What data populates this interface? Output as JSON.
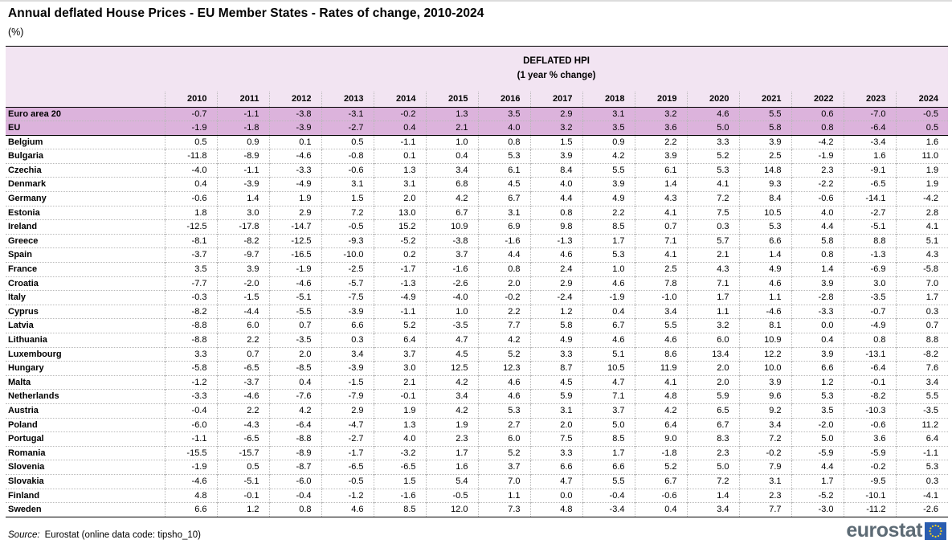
{
  "page": {
    "title": "Annual deflated House Prices - EU Member States - Rates of change, 2010-2024",
    "unit": "(%)"
  },
  "table_header": {
    "line1": "DEFLATED HPI",
    "line2": "(1 year % change)"
  },
  "chart_data": {
    "type": "table",
    "title": "DEFLATED HPI (1 year % change)",
    "unit": "%",
    "columns": [
      "2010",
      "2011",
      "2012",
      "2013",
      "2014",
      "2015",
      "2016",
      "2017",
      "2018",
      "2019",
      "2020",
      "2021",
      "2022",
      "2023",
      "2024"
    ],
    "rows": [
      {
        "name": "Euro area 20",
        "highlight": true,
        "values": [
          "-0.7",
          "-1.1",
          "-3.8",
          "-3.1",
          "-0.2",
          "1.3",
          "3.5",
          "2.9",
          "3.1",
          "3.2",
          "4.6",
          "5.5",
          "0.6",
          "-7.0",
          "-0.5"
        ]
      },
      {
        "name": "EU",
        "highlight": true,
        "values": [
          "-1.9",
          "-1.8",
          "-3.9",
          "-2.7",
          "0.4",
          "2.1",
          "4.0",
          "3.2",
          "3.5",
          "3.6",
          "5.0",
          "5.8",
          "0.8",
          "-6.4",
          "0.5"
        ]
      },
      {
        "name": "Belgium",
        "highlight": false,
        "values": [
          "0.5",
          "0.9",
          "0.1",
          "0.5",
          "-1.1",
          "1.0",
          "0.8",
          "1.5",
          "0.9",
          "2.2",
          "3.3",
          "3.9",
          "-4.2",
          "-3.4",
          "1.6"
        ]
      },
      {
        "name": "Bulgaria",
        "highlight": false,
        "values": [
          "-11.8",
          "-8.9",
          "-4.6",
          "-0.8",
          "0.1",
          "0.4",
          "5.3",
          "3.9",
          "4.2",
          "3.9",
          "5.2",
          "2.5",
          "-1.9",
          "1.6",
          "11.0"
        ]
      },
      {
        "name": "Czechia",
        "highlight": false,
        "values": [
          "-4.0",
          "-1.1",
          "-3.3",
          "-0.6",
          "1.3",
          "3.4",
          "6.1",
          "8.4",
          "5.5",
          "6.1",
          "5.3",
          "14.8",
          "2.3",
          "-9.1",
          "1.9"
        ]
      },
      {
        "name": "Denmark",
        "highlight": false,
        "values": [
          "0.4",
          "-3.9",
          "-4.9",
          "3.1",
          "3.1",
          "6.8",
          "4.5",
          "4.0",
          "3.9",
          "1.4",
          "4.1",
          "9.3",
          "-2.2",
          "-6.5",
          "1.9"
        ]
      },
      {
        "name": "Germany",
        "highlight": false,
        "values": [
          "-0.6",
          "1.4",
          "1.9",
          "1.5",
          "2.0",
          "4.2",
          "6.7",
          "4.4",
          "4.9",
          "4.3",
          "7.2",
          "8.4",
          "-0.6",
          "-14.1",
          "-4.2"
        ]
      },
      {
        "name": "Estonia",
        "highlight": false,
        "values": [
          "1.8",
          "3.0",
          "2.9",
          "7.2",
          "13.0",
          "6.7",
          "3.1",
          "0.8",
          "2.2",
          "4.1",
          "7.5",
          "10.5",
          "4.0",
          "-2.7",
          "2.8"
        ]
      },
      {
        "name": "Ireland",
        "highlight": false,
        "values": [
          "-12.5",
          "-17.8",
          "-14.7",
          "-0.5",
          "15.2",
          "10.9",
          "6.9",
          "9.8",
          "8.5",
          "0.7",
          "0.3",
          "5.3",
          "4.4",
          "-5.1",
          "4.1"
        ]
      },
      {
        "name": "Greece",
        "highlight": false,
        "values": [
          "-8.1",
          "-8.2",
          "-12.5",
          "-9.3",
          "-5.2",
          "-3.8",
          "-1.6",
          "-1.3",
          "1.7",
          "7.1",
          "5.7",
          "6.6",
          "5.8",
          "8.8",
          "5.1"
        ]
      },
      {
        "name": "Spain",
        "highlight": false,
        "values": [
          "-3.7",
          "-9.7",
          "-16.5",
          "-10.0",
          "0.2",
          "3.7",
          "4.4",
          "4.6",
          "5.3",
          "4.1",
          "2.1",
          "1.4",
          "0.8",
          "-1.3",
          "4.3"
        ]
      },
      {
        "name": "France",
        "highlight": false,
        "values": [
          "3.5",
          "3.9",
          "-1.9",
          "-2.5",
          "-1.7",
          "-1.6",
          "0.8",
          "2.4",
          "1.0",
          "2.5",
          "4.3",
          "4.9",
          "1.4",
          "-6.9",
          "-5.8"
        ]
      },
      {
        "name": "Croatia",
        "highlight": false,
        "values": [
          "-7.7",
          "-2.0",
          "-4.6",
          "-5.7",
          "-1.3",
          "-2.6",
          "2.0",
          "2.9",
          "4.6",
          "7.8",
          "7.1",
          "4.6",
          "3.9",
          "3.0",
          "7.0"
        ]
      },
      {
        "name": "Italy",
        "highlight": false,
        "values": [
          "-0.3",
          "-1.5",
          "-5.1",
          "-7.5",
          "-4.9",
          "-4.0",
          "-0.2",
          "-2.4",
          "-1.9",
          "-1.0",
          "1.7",
          "1.1",
          "-2.8",
          "-3.5",
          "1.7"
        ]
      },
      {
        "name": "Cyprus",
        "highlight": false,
        "values": [
          "-8.2",
          "-4.4",
          "-5.5",
          "-3.9",
          "-1.1",
          "1.0",
          "2.2",
          "1.2",
          "0.4",
          "3.4",
          "1.1",
          "-4.6",
          "-3.3",
          "-0.7",
          "0.3"
        ]
      },
      {
        "name": "Latvia",
        "highlight": false,
        "values": [
          "-8.8",
          "6.0",
          "0.7",
          "6.6",
          "5.2",
          "-3.5",
          "7.7",
          "5.8",
          "6.7",
          "5.5",
          "3.2",
          "8.1",
          "0.0",
          "-4.9",
          "0.7"
        ]
      },
      {
        "name": "Lithuania",
        "highlight": false,
        "values": [
          "-8.8",
          "2.2",
          "-3.5",
          "0.3",
          "6.4",
          "4.7",
          "4.2",
          "4.9",
          "4.6",
          "4.6",
          "6.0",
          "10.9",
          "0.4",
          "0.8",
          "8.8"
        ]
      },
      {
        "name": "Luxembourg",
        "highlight": false,
        "values": [
          "3.3",
          "0.7",
          "2.0",
          "3.4",
          "3.7",
          "4.5",
          "5.2",
          "3.3",
          "5.1",
          "8.6",
          "13.4",
          "12.2",
          "3.9",
          "-13.1",
          "-8.2"
        ]
      },
      {
        "name": "Hungary",
        "highlight": false,
        "values": [
          "-5.8",
          "-6.5",
          "-8.5",
          "-3.9",
          "3.0",
          "12.5",
          "12.3",
          "8.7",
          "10.5",
          "11.9",
          "2.0",
          "10.0",
          "6.6",
          "-6.4",
          "7.6"
        ]
      },
      {
        "name": "Malta",
        "highlight": false,
        "values": [
          "-1.2",
          "-3.7",
          "0.4",
          "-1.5",
          "2.1",
          "4.2",
          "4.6",
          "4.5",
          "4.7",
          "4.1",
          "2.0",
          "3.9",
          "1.2",
          "-0.1",
          "3.4"
        ]
      },
      {
        "name": "Netherlands",
        "highlight": false,
        "values": [
          "-3.3",
          "-4.6",
          "-7.6",
          "-7.9",
          "-0.1",
          "3.4",
          "4.6",
          "5.9",
          "7.1",
          "4.8",
          "5.9",
          "9.6",
          "5.3",
          "-8.2",
          "5.5"
        ]
      },
      {
        "name": "Austria",
        "highlight": false,
        "values": [
          "-0.4",
          "2.2",
          "4.2",
          "2.9",
          "1.9",
          "4.2",
          "5.3",
          "3.1",
          "3.7",
          "4.2",
          "6.5",
          "9.2",
          "3.5",
          "-10.3",
          "-3.5"
        ]
      },
      {
        "name": "Poland",
        "highlight": false,
        "values": [
          "-6.0",
          "-4.3",
          "-6.4",
          "-4.7",
          "1.3",
          "1.9",
          "2.7",
          "2.0",
          "5.0",
          "6.4",
          "6.7",
          "3.4",
          "-2.0",
          "-0.6",
          "11.2"
        ]
      },
      {
        "name": "Portugal",
        "highlight": false,
        "values": [
          "-1.1",
          "-6.5",
          "-8.8",
          "-2.7",
          "4.0",
          "2.3",
          "6.0",
          "7.5",
          "8.5",
          "9.0",
          "8.3",
          "7.2",
          "5.0",
          "3.6",
          "6.4"
        ]
      },
      {
        "name": "Romania",
        "highlight": false,
        "values": [
          "-15.5",
          "-15.7",
          "-8.9",
          "-1.7",
          "-3.2",
          "1.7",
          "5.2",
          "3.3",
          "1.7",
          "-1.8",
          "2.3",
          "-0.2",
          "-5.9",
          "-5.9",
          "-1.1"
        ]
      },
      {
        "name": "Slovenia",
        "highlight": false,
        "values": [
          "-1.9",
          "0.5",
          "-8.7",
          "-6.5",
          "-6.5",
          "1.6",
          "3.7",
          "6.6",
          "6.6",
          "5.2",
          "5.0",
          "7.9",
          "4.4",
          "-0.2",
          "5.3"
        ]
      },
      {
        "name": "Slovakia",
        "highlight": false,
        "values": [
          "-4.6",
          "-5.1",
          "-6.0",
          "-0.5",
          "1.5",
          "5.4",
          "7.0",
          "4.7",
          "5.5",
          "6.7",
          "7.2",
          "3.1",
          "1.7",
          "-9.5",
          "0.3"
        ]
      },
      {
        "name": "Finland",
        "highlight": false,
        "values": [
          "4.8",
          "-0.1",
          "-0.4",
          "-1.2",
          "-1.6",
          "-0.5",
          "1.1",
          "0.0",
          "-0.4",
          "-0.6",
          "1.4",
          "2.3",
          "-5.2",
          "-10.1",
          "-4.1"
        ]
      },
      {
        "name": "Sweden",
        "highlight": false,
        "values": [
          "6.6",
          "1.2",
          "0.8",
          "4.6",
          "8.5",
          "12.0",
          "7.3",
          "4.8",
          "-3.4",
          "0.4",
          "3.4",
          "7.7",
          "-3.0",
          "-11.2",
          "-2.6"
        ]
      }
    ]
  },
  "footer": {
    "source_label": "Source:",
    "source_text": "Eurostat (online data code: tipsho_10)",
    "logo_text": "eurostat"
  },
  "colors": {
    "header_bg": "#f2e4f2",
    "highlight_bg": "#dcb3dc",
    "grid_dotted": "#b9b9b9",
    "rule": "#000000",
    "logo_text": "#5d6b75",
    "flag_bg": "#2a5db0",
    "star_color": "#ffd617"
  }
}
